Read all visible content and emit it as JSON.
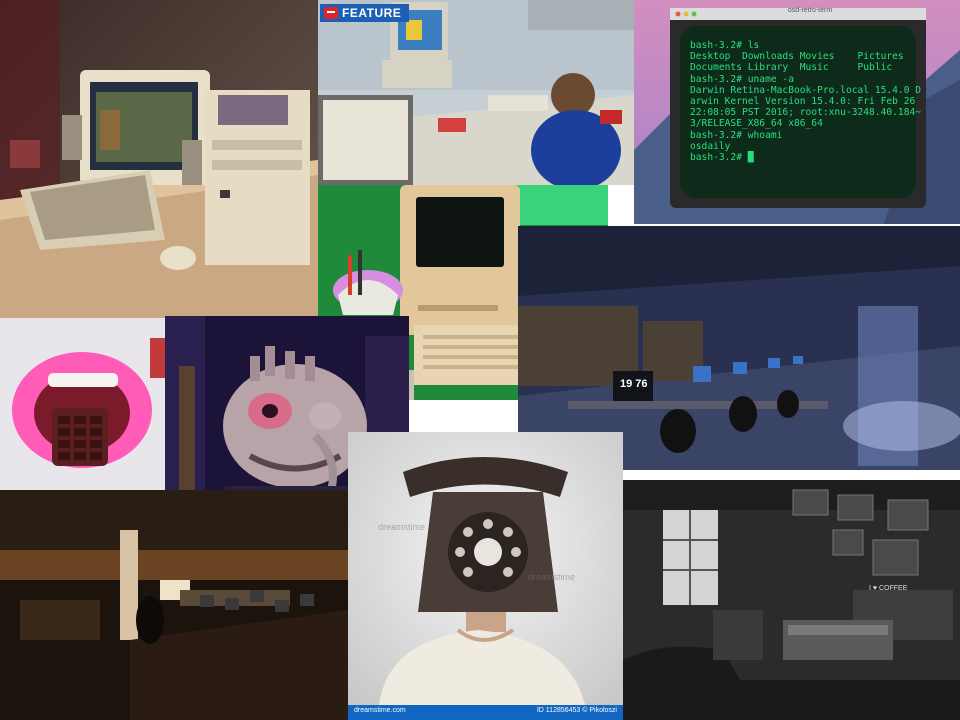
{
  "collage": {
    "badge": {
      "label": "FEATURE"
    },
    "terminal": {
      "title": "osd-retro-term",
      "lines": [
        "bash-3.2# ls",
        "Desktop  Downloads Movies    Pictures",
        "Documents Library  Music     Public",
        "bash-3.2# uname -a",
        "Darwin Retina-MacBook-Pro.local 15.4.0 D",
        "arwin Kernel Version 15.4.0: Fri Feb 26",
        "22:08:05 PST 2016; root:xnu-3248.40.184~",
        "3/RELEASE_X86_64 x86_64",
        "bash-3.2# whoami",
        "osdaily",
        "bash-3.2# █"
      ]
    },
    "lab_screen": {
      "text": "19 76"
    },
    "cafe_sign": {
      "text": "I ♥ COFFEE"
    },
    "stock": {
      "left": "dreamstime.com",
      "right": "ID 112856453 © Pikoloszi",
      "watermark": "dreamstime"
    },
    "colors": {
      "background": "#ffffff",
      "badge_blue": "#1d5fb3",
      "badge_red": "#d9262b",
      "terminal_green": "#28e07a",
      "stock_bar": "#1166c2"
    }
  }
}
